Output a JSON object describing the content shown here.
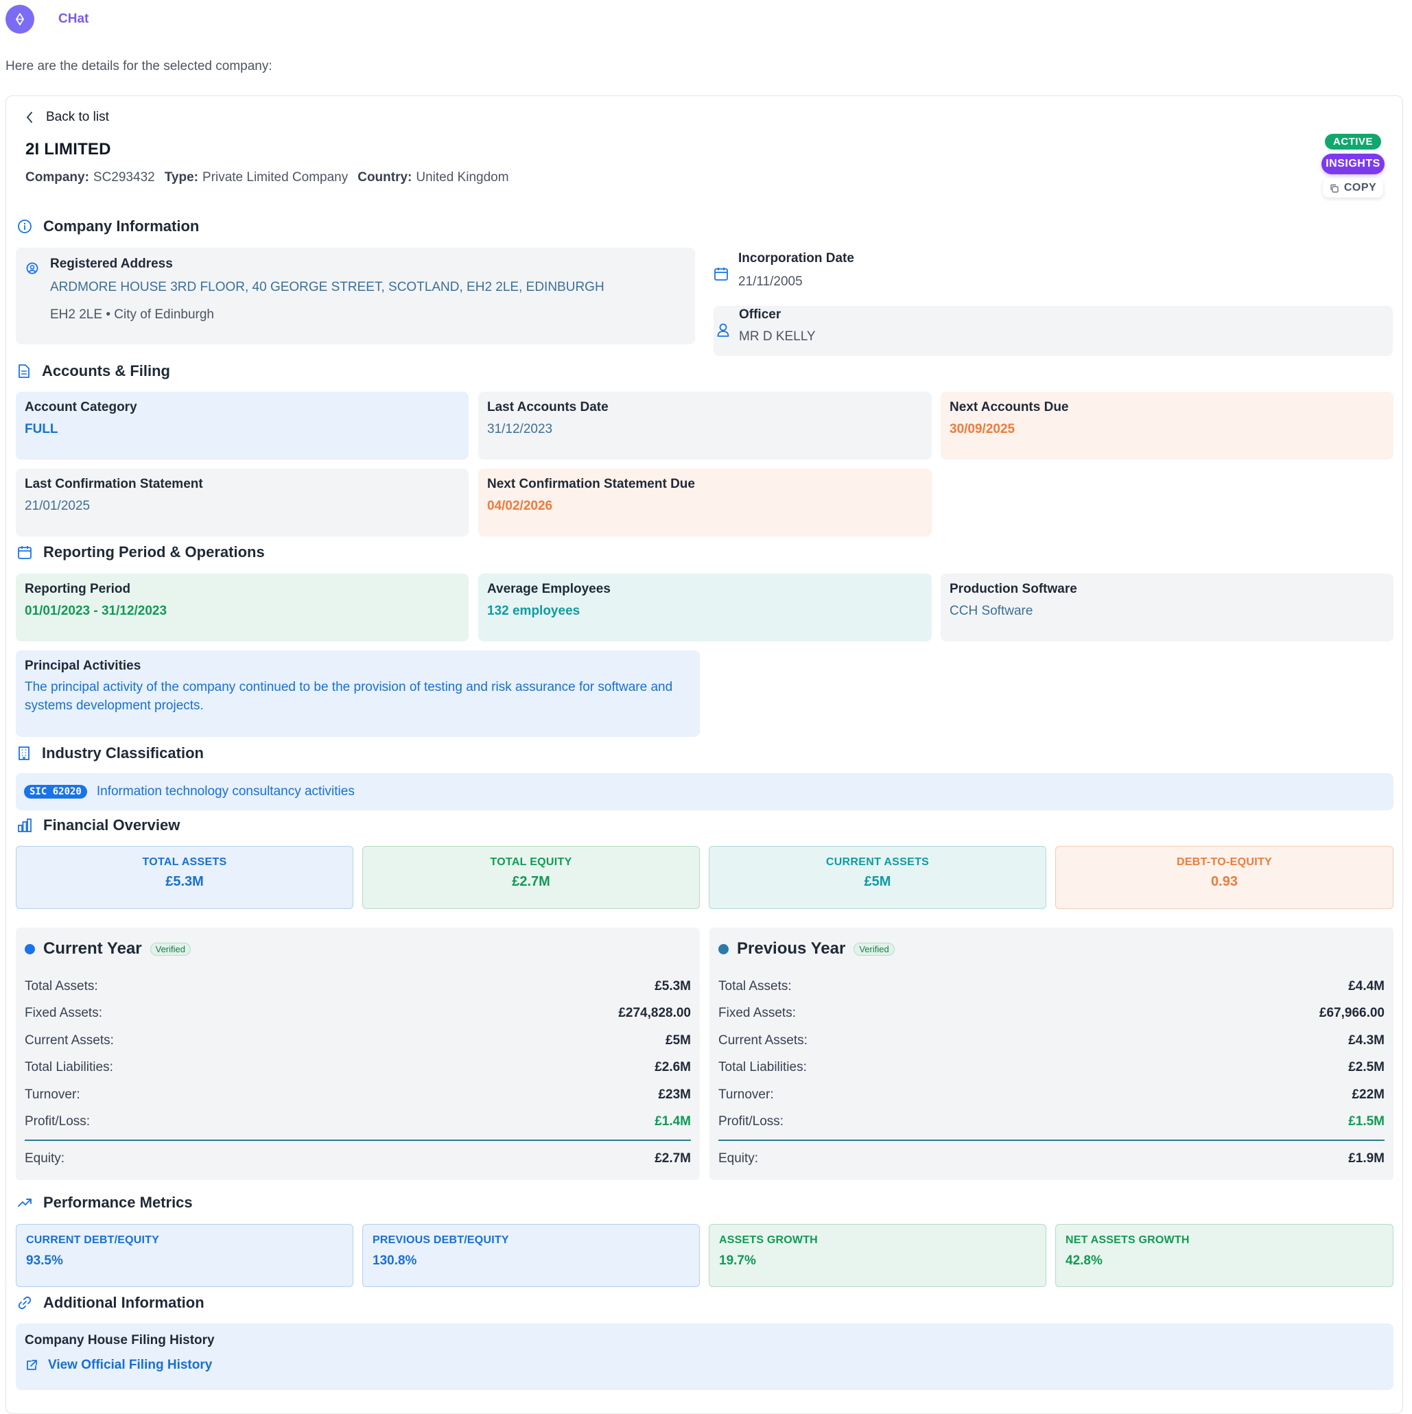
{
  "app": {
    "name": "CHat"
  },
  "intro": "Here are the details for the selected company:",
  "back_label": "Back to list",
  "company": {
    "name": "2I LIMITED",
    "meta": [
      {
        "label": "Company:",
        "value": "SC293432"
      },
      {
        "label": "Type:",
        "value": "Private Limited Company"
      },
      {
        "label": "Country:",
        "value": "United Kingdom"
      }
    ]
  },
  "badges": {
    "status": "ACTIVE",
    "insights": "INSIGHTS",
    "copy": "COPY"
  },
  "company_information": {
    "title": "Company Information",
    "registered_address": {
      "label": "Registered Address",
      "line1": "ARDMORE HOUSE 3RD FLOOR, 40 GEORGE STREET, SCOTLAND, EH2 2LE, EDINBURGH",
      "line2": "EH2 2LE • City of Edinburgh"
    },
    "incorporation": {
      "label": "Incorporation Date",
      "value": "21/11/2005"
    },
    "officer": {
      "label": "Officer",
      "value": "MR D KELLY"
    }
  },
  "accounts": {
    "title": "Accounts & Filing",
    "account_category": {
      "label": "Account Category",
      "value": "FULL"
    },
    "last_accounts": {
      "label": "Last Accounts Date",
      "value": "31/12/2023"
    },
    "next_accounts": {
      "label": "Next Accounts Due",
      "value": "30/09/2025"
    },
    "last_confirmation": {
      "label": "Last Confirmation Statement",
      "value": "21/01/2025"
    },
    "next_confirmation": {
      "label": "Next Confirmation Statement Due",
      "value": "04/02/2026"
    }
  },
  "reporting": {
    "title": "Reporting Period & Operations",
    "period": {
      "label": "Reporting Period",
      "value": "01/01/2023 - 31/12/2023"
    },
    "employees": {
      "label": "Average Employees",
      "value": "132 employees"
    },
    "software": {
      "label": "Production Software",
      "value": "CCH Software"
    },
    "activities": {
      "label": "Principal Activities",
      "value": "The principal activity of the company continued to be the provision of testing and risk assurance for software and systems development projects."
    }
  },
  "industry": {
    "title": "Industry Classification",
    "sic_code": "SIC 62020",
    "description": "Information technology consultancy activities"
  },
  "financial_overview": {
    "title": "Financial Overview",
    "stats": [
      {
        "label": "TOTAL ASSETS",
        "value": "£5.3M"
      },
      {
        "label": "TOTAL EQUITY",
        "value": "£2.7M"
      },
      {
        "label": "CURRENT ASSETS",
        "value": "£5M"
      },
      {
        "label": "DEBT-TO-EQUITY",
        "value": "0.93"
      }
    ]
  },
  "years": {
    "current": {
      "title": "Current Year",
      "verified": "Verified",
      "rows": [
        {
          "label": "Total Assets:",
          "value": "£5.3M"
        },
        {
          "label": "Fixed Assets:",
          "value": "£274,828.00"
        },
        {
          "label": "Current Assets:",
          "value": "£5M"
        },
        {
          "label": "Total Liabilities:",
          "value": "£2.6M"
        },
        {
          "label": "Turnover:",
          "value": "£23M"
        },
        {
          "label": "Profit/Loss:",
          "value": "£1.4M"
        }
      ],
      "equity": {
        "label": "Equity:",
        "value": "£2.7M"
      }
    },
    "previous": {
      "title": "Previous Year",
      "verified": "Verified",
      "rows": [
        {
          "label": "Total Assets:",
          "value": "£4.4M"
        },
        {
          "label": "Fixed Assets:",
          "value": "£67,966.00"
        },
        {
          "label": "Current Assets:",
          "value": "£4.3M"
        },
        {
          "label": "Total Liabilities:",
          "value": "£2.5M"
        },
        {
          "label": "Turnover:",
          "value": "£22M"
        },
        {
          "label": "Profit/Loss:",
          "value": "£1.5M"
        }
      ],
      "equity": {
        "label": "Equity:",
        "value": "£1.9M"
      }
    }
  },
  "performance": {
    "title": "Performance Metrics",
    "metrics": [
      {
        "label": "CURRENT DEBT/EQUITY",
        "value": "93.5%"
      },
      {
        "label": "PREVIOUS DEBT/EQUITY",
        "value": "130.8%"
      },
      {
        "label": "ASSETS GROWTH",
        "value": "19.7%"
      },
      {
        "label": "NET ASSETS GROWTH",
        "value": "42.8%"
      }
    ]
  },
  "additional": {
    "title": "Additional Information",
    "filing_label": "Company House Filing History",
    "filing_link": "View Official Filing History"
  },
  "colors": {
    "accent": "#7c5ce8",
    "active": "#10a86c",
    "insights": "#7c3aed",
    "link_blue": "#1a6fd1",
    "orange": "#f07a3a",
    "green": "#109a55",
    "teal": "#0f9ba0"
  }
}
